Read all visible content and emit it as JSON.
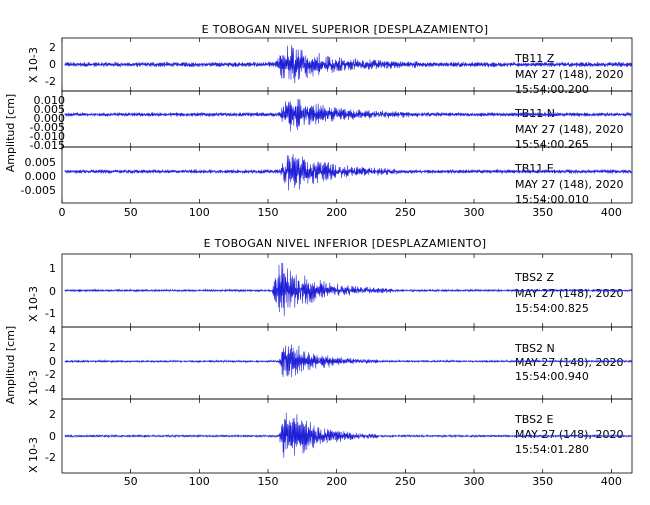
{
  "trace_color": "#1f1fd8",
  "charts": {
    "top": {
      "title": "E TOBOGAN NIVEL SUPERIOR [DESPLAZAMIENTO]",
      "ylabel": "Amplitud [cm]",
      "x_ticks": [
        "0",
        "50",
        "100",
        "150",
        "200",
        "250",
        "300",
        "350",
        "400"
      ],
      "panels": [
        {
          "channel": "TB11   Z",
          "date": "MAY 27 (148), 2020",
          "time": "15:54:00.200",
          "scale_label": "X 10-3",
          "y_ticks": [
            "2",
            "0",
            "-2"
          ]
        },
        {
          "channel": "TB11   N",
          "date": "MAY 27 (148), 2020",
          "time": "15:54:00.265",
          "scale_label": "",
          "y_ticks": [
            "0.010",
            "0.005",
            "0.000",
            "-0.005",
            "-0.010",
            "-0.015"
          ]
        },
        {
          "channel": "TB11   E",
          "date": "MAY 27 (148), 2020",
          "time": "15:54:00.010",
          "scale_label": "",
          "y_ticks": [
            "0.005",
            "0.000",
            "-0.005"
          ]
        }
      ]
    },
    "bottom": {
      "title": "E TOBOGAN NIVEL INFERIOR [DESPLAZAMIENTO]",
      "ylabel": "Amplitud [cm]",
      "x_ticks": [
        "50",
        "100",
        "150",
        "200",
        "250",
        "300",
        "350",
        "400"
      ],
      "panels": [
        {
          "channel": "TBS2   Z",
          "date": "MAY 27 (148), 2020",
          "time": "15:54:00.825",
          "scale_label": "X 10-3",
          "y_ticks": [
            "1",
            "0",
            "-1"
          ]
        },
        {
          "channel": "TBS2   N",
          "date": "MAY 27 (148), 2020",
          "time": "15:54:00.940",
          "scale_label": "X 10-3",
          "y_ticks": [
            "4",
            "2",
            "0",
            "-2",
            "-4"
          ]
        },
        {
          "channel": "TBS2   E",
          "date": "MAY 27 (148), 2020",
          "time": "15:54:01.280",
          "scale_label": "X 10-3",
          "y_ticks": [
            "2",
            "0",
            "-2"
          ]
        }
      ]
    }
  },
  "chart_data": [
    {
      "type": "line",
      "title": "E TOBOGAN NIVEL SUPERIOR [DESPLAZAMIENTO]",
      "ylabel": "Amplitud [cm]",
      "xlim": [
        0,
        415
      ],
      "series": [
        {
          "name": "TB11   Z",
          "units": "X 10-3",
          "ylim": [
            -2.5,
            2.5
          ],
          "onset_x": 155,
          "peak_x": 163,
          "peak_amplitude": 2.2,
          "noise_amplitude": 0.25,
          "decay_end_x": 260
        },
        {
          "name": "TB11   N",
          "ylim": [
            -0.018,
            0.013
          ],
          "onset_x": 158,
          "peak_x": 165,
          "peak_amplitude": 0.011,
          "noise_amplitude": 0.0012,
          "decay_end_x": 260
        },
        {
          "name": "TB11   E",
          "ylim": [
            -0.009,
            0.007
          ],
          "onset_x": 158,
          "peak_x": 166,
          "peak_amplitude": 0.0065,
          "noise_amplitude": 0.0006,
          "decay_end_x": 250
        }
      ]
    },
    {
      "type": "line",
      "title": "E TOBOGAN NIVEL INFERIOR [DESPLAZAMIENTO]",
      "ylabel": "Amplitud [cm]",
      "xlim": [
        0,
        415
      ],
      "series": [
        {
          "name": "TBS2   Z",
          "units": "X 10-3",
          "ylim": [
            -1.6,
            1.6
          ],
          "onset_x": 153,
          "peak_x": 158,
          "peak_amplitude": 1.4,
          "noise_amplitude": 0.05,
          "decay_end_x": 240
        },
        {
          "name": "TBS2   N",
          "units": "X 10-3",
          "ylim": [
            -5.5,
            5
          ],
          "onset_x": 158,
          "peak_x": 162,
          "peak_amplitude": 3.5,
          "noise_amplitude": 0.15,
          "decay_end_x": 230
        },
        {
          "name": "TBS2   E",
          "units": "X 10-3",
          "ylim": [
            -3.3,
            3.3
          ],
          "onset_x": 158,
          "peak_x": 162,
          "peak_amplitude": 2.8,
          "noise_amplitude": 0.1,
          "decay_end_x": 230
        }
      ]
    }
  ]
}
